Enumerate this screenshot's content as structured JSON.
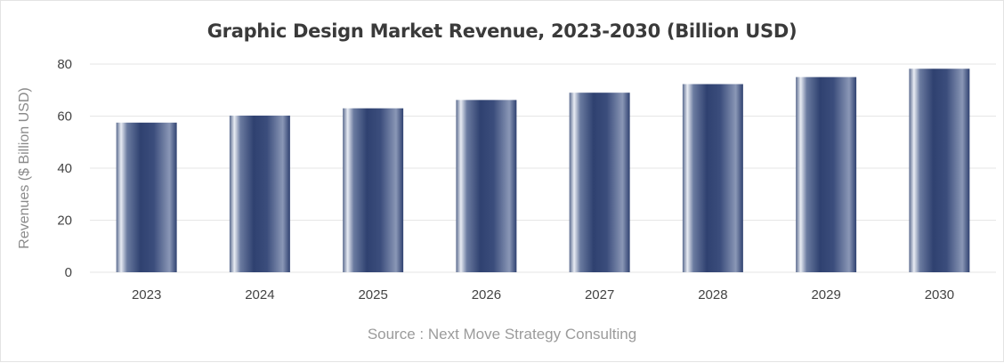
{
  "chart_data": {
    "type": "bar",
    "title": "Graphic Design Market Revenue, 2023-2030 (Billion USD)",
    "xlabel": "",
    "ylabel": "Revenues ($ Billion USD)",
    "categories": [
      "2023",
      "2024",
      "2025",
      "2026",
      "2027",
      "2028",
      "2029",
      "2030"
    ],
    "values": [
      57.5,
      60.2,
      63.0,
      66.2,
      69.0,
      72.3,
      75.0,
      78.2
    ],
    "ylim": [
      0,
      80
    ],
    "yticks": [
      "0",
      "20",
      "40",
      "60",
      "80"
    ],
    "grid": true,
    "legend": "none",
    "bar_color": "#2f4170",
    "source": "Source : Next Move Strategy Consulting"
  }
}
